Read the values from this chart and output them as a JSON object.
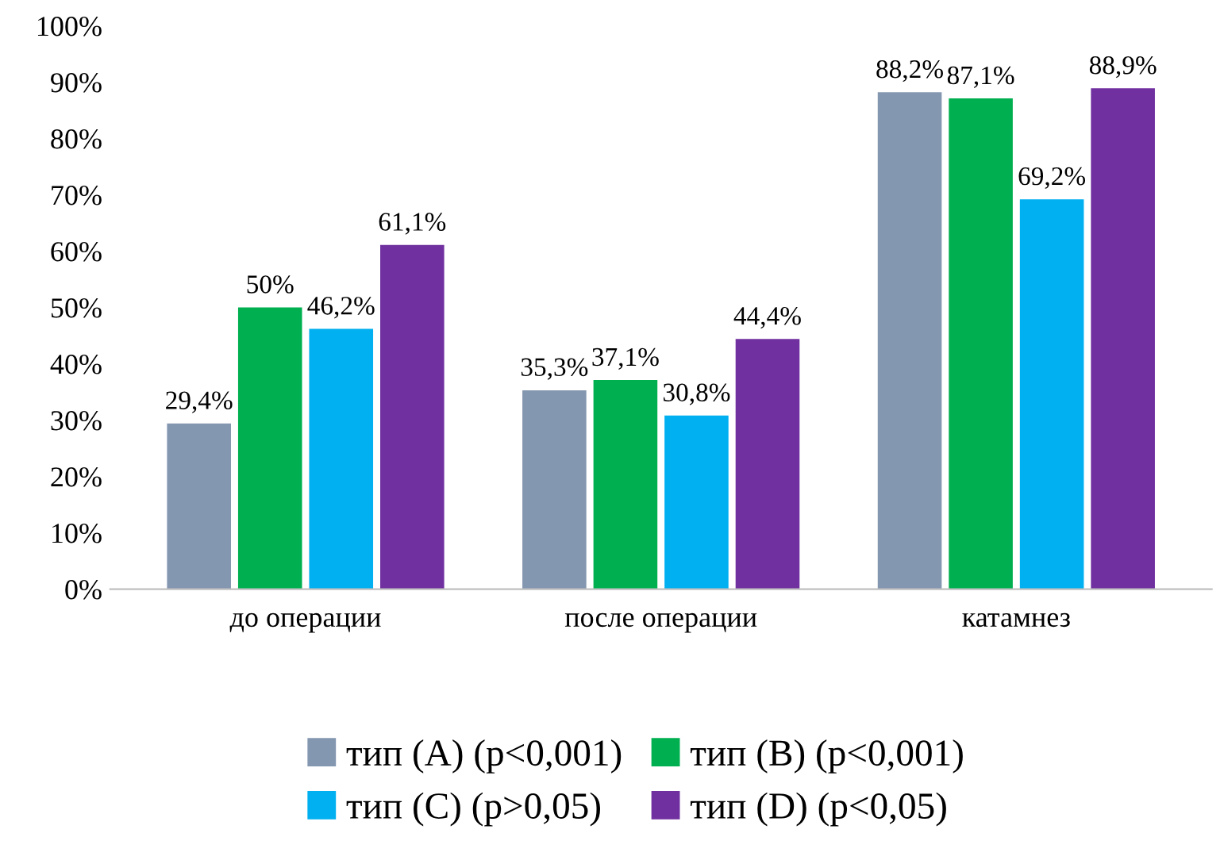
{
  "chart_data": {
    "type": "bar",
    "categories": [
      "до операции",
      "после операции",
      "катамнез"
    ],
    "series": [
      {
        "name": "тип (A) (p<0,001)",
        "color": "#8497b0",
        "values": [
          29.4,
          35.3,
          88.2
        ],
        "value_labels": [
          "29,4%",
          "35,3%",
          "88,2%"
        ]
      },
      {
        "name": "тип (B) (p<0,001)",
        "color": "#00b050",
        "values": [
          50,
          37.1,
          87.1
        ],
        "value_labels": [
          "50%",
          "37,1%",
          "87,1%"
        ]
      },
      {
        "name": "тип (C) (p>0,05)",
        "color": "#00b0f0",
        "values": [
          46.2,
          30.8,
          69.2
        ],
        "value_labels": [
          "46,2%",
          "30,8%",
          "69,2%"
        ]
      },
      {
        "name": "тип (D) (p<0,05)",
        "color": "#7030a0",
        "values": [
          61.1,
          44.4,
          88.9
        ],
        "value_labels": [
          "61,1%",
          "44,4%",
          "88,9%"
        ]
      }
    ],
    "ylim": [
      0,
      100
    ],
    "yticks": [
      {
        "value": 0,
        "label": "0%"
      },
      {
        "value": 10,
        "label": "10%"
      },
      {
        "value": 20,
        "label": "20%"
      },
      {
        "value": 30,
        "label": "30%"
      },
      {
        "value": 40,
        "label": "40%"
      },
      {
        "value": 50,
        "label": "50%"
      },
      {
        "value": 60,
        "label": "60%"
      },
      {
        "value": 70,
        "label": "70%"
      },
      {
        "value": 80,
        "label": "80%"
      },
      {
        "value": 90,
        "label": "90%"
      },
      {
        "value": 100,
        "label": "100%"
      }
    ],
    "grid": false,
    "legend": "bottom"
  }
}
